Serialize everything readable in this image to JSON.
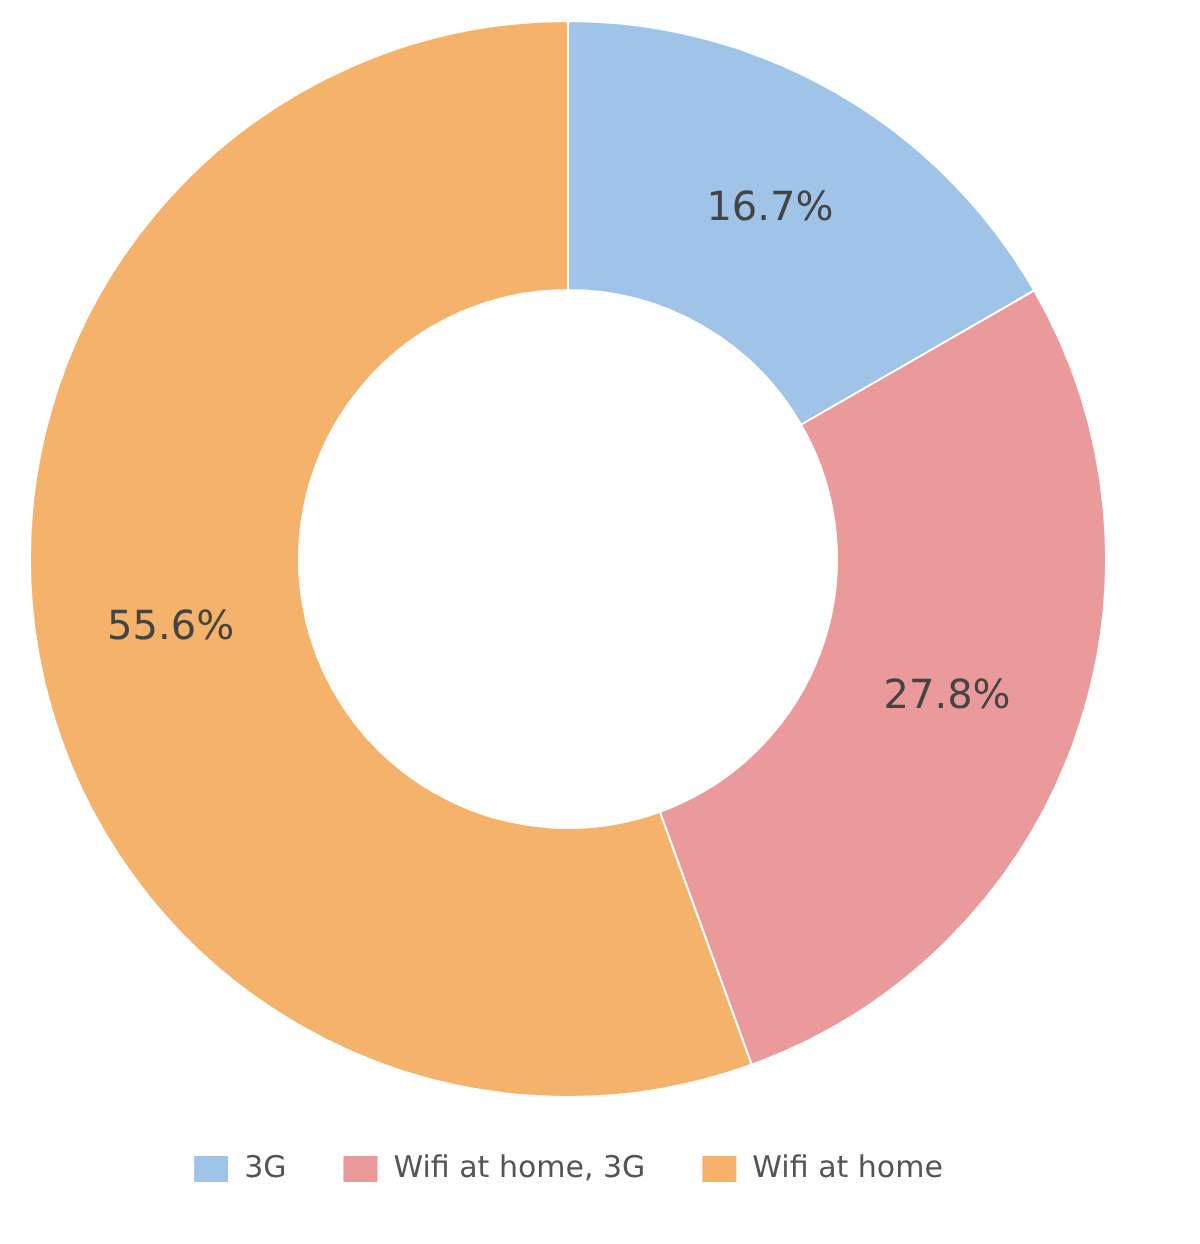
{
  "chart_data": {
    "type": "donut",
    "categories": [
      "3G",
      "Wifi at home, 3G",
      "Wifi at home"
    ],
    "values": [
      16.7,
      27.8,
      55.6
    ],
    "colors": [
      "#a0c4e8",
      "#eb9a9c",
      "#f4b26a"
    ],
    "value_labels": [
      "16.7%",
      "27.8%",
      "55.6%"
    ],
    "legend": "bottom"
  }
}
